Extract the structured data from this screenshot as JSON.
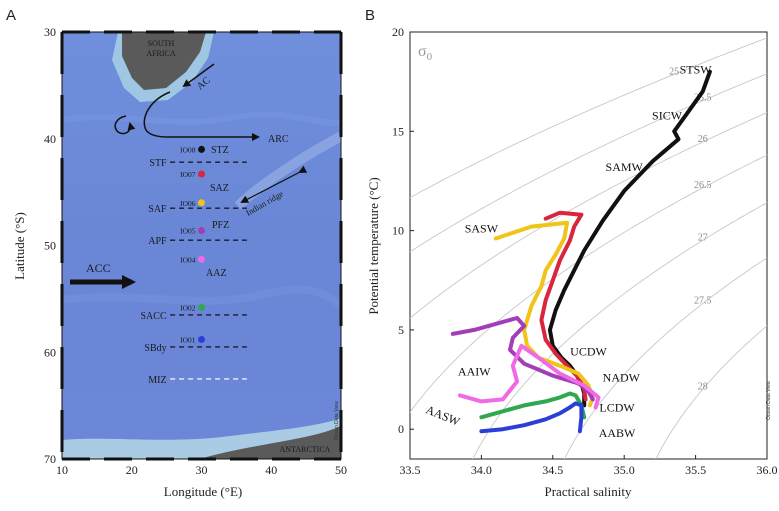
{
  "panels": {
    "a_label": "A",
    "b_label": "B"
  },
  "map": {
    "xlabel": "Longitude (°E)",
    "ylabel": "Latitude (°S)",
    "xticks": [
      10,
      20,
      30,
      40,
      50
    ],
    "yticks": [
      30,
      40,
      50,
      60,
      70
    ],
    "xlim": [
      10,
      50
    ],
    "ylim": [
      30,
      70
    ],
    "land_labels": {
      "south_africa_1": "SOUTH",
      "south_africa_2": "AFRICA",
      "antarctica": "ANTARCTICA"
    },
    "currents": {
      "ac": "AC",
      "arc": "ARC",
      "acc": "ACC"
    },
    "fronts": [
      {
        "label": "STF",
        "lat": 42.2
      },
      {
        "label": "SAF",
        "lat": 46.5
      },
      {
        "label": "APF",
        "lat": 49.5
      },
      {
        "label": "SACC",
        "lat": 56.5
      },
      {
        "label": "SBdy",
        "lat": 59.5
      },
      {
        "label": "MIZ",
        "lat": 62.5
      }
    ],
    "zones": {
      "stz": "STZ",
      "saz": "SAZ",
      "pfz": "PFZ",
      "aaz": "AAZ"
    },
    "ridge": "Indian ridge",
    "stations": [
      {
        "id": "IO08",
        "lon": 30,
        "lat": 41.0,
        "color": "#111111"
      },
      {
        "id": "IO07",
        "lon": 30,
        "lat": 43.3,
        "color": "#d7263d"
      },
      {
        "id": "IO06",
        "lon": 30,
        "lat": 46.0,
        "color": "#f0c419"
      },
      {
        "id": "IO05",
        "lon": 30,
        "lat": 48.6,
        "color": "#a23fb8"
      },
      {
        "id": "IO04",
        "lon": 30,
        "lat": 51.3,
        "color": "#f06ae8"
      },
      {
        "id": "IO02",
        "lon": 30,
        "lat": 55.8,
        "color": "#2fa84f"
      },
      {
        "id": "IO01",
        "lon": 30,
        "lat": 58.8,
        "color": "#2a3fd6"
      }
    ],
    "credit": "Ocean Data View"
  },
  "chart_data": {
    "type": "line",
    "title": "",
    "xlabel": "Practical salinity",
    "ylabel": "Potential temperature (°C)",
    "xlim": [
      33.5,
      36.0
    ],
    "ylim": [
      -1.5,
      20
    ],
    "xticks": [
      33.5,
      34.0,
      34.5,
      35.0,
      35.5,
      36.0
    ],
    "yticks": [
      0,
      5,
      10,
      15,
      20
    ],
    "density_symbol": "σ",
    "density_subscript": "0",
    "contours": [
      {
        "label": "25",
        "sigma": 25.0
      },
      {
        "label": "25.5",
        "sigma": 25.5
      },
      {
        "label": "26",
        "sigma": 26.0
      },
      {
        "label": "26.5",
        "sigma": 26.5
      },
      {
        "label": "27",
        "sigma": 27.0
      },
      {
        "label": "27.5",
        "sigma": 27.5
      },
      {
        "label": "28",
        "sigma": 28.0
      }
    ],
    "water_masses": [
      {
        "label": "STSW",
        "s": 35.5,
        "t": 17.9
      },
      {
        "label": "SICW",
        "s": 35.3,
        "t": 15.6
      },
      {
        "label": "SAMW",
        "s": 35.0,
        "t": 13.0
      },
      {
        "label": "SASW",
        "s": 34.0,
        "t": 9.9
      },
      {
        "label": "UCDW",
        "s": 34.75,
        "t": 3.7
      },
      {
        "label": "NADW",
        "s": 34.98,
        "t": 2.4
      },
      {
        "label": "AAIW",
        "s": 33.95,
        "t": 2.7
      },
      {
        "label": "LCDW",
        "s": 34.95,
        "t": 0.9
      },
      {
        "label": "AASW",
        "s": 33.72,
        "t": 0.5
      },
      {
        "label": "AABW",
        "s": 34.95,
        "t": -0.4
      }
    ],
    "series": [
      {
        "station": "IO08",
        "color": "#111111",
        "width": 4,
        "x": [
          35.6,
          35.55,
          35.45,
          35.35,
          35.38,
          35.2,
          35.0,
          34.85,
          34.72,
          34.65,
          34.58,
          34.52,
          34.48,
          34.5,
          34.56,
          34.62,
          34.66,
          34.7,
          34.72,
          34.72
        ],
        "y": [
          18.0,
          17.0,
          16.0,
          15.0,
          14.6,
          13.5,
          12.0,
          10.5,
          9.0,
          8.0,
          7.0,
          6.0,
          5.0,
          4.2,
          3.6,
          3.2,
          2.8,
          2.3,
          1.8,
          1.2
        ]
      },
      {
        "station": "IO07",
        "color": "#d7263d",
        "width": 4,
        "x": [
          34.45,
          34.55,
          34.7,
          34.65,
          34.62,
          34.55,
          34.5,
          34.45,
          34.42,
          34.45,
          34.52,
          34.6,
          34.68,
          34.72,
          34.73
        ],
        "y": [
          10.6,
          10.9,
          10.8,
          10.2,
          9.5,
          8.5,
          7.5,
          6.5,
          5.5,
          4.5,
          3.8,
          3.2,
          2.6,
          2.0,
          1.5
        ]
      },
      {
        "station": "IO06",
        "color": "#f0c419",
        "width": 4,
        "x": [
          34.1,
          34.35,
          34.6,
          34.58,
          34.52,
          34.45,
          34.42,
          34.35,
          34.3,
          34.32,
          34.4,
          34.55,
          34.68,
          34.75,
          34.78,
          34.76
        ],
        "y": [
          9.6,
          10.2,
          10.4,
          9.6,
          8.8,
          8.0,
          7.2,
          6.2,
          5.0,
          4.2,
          3.6,
          3.2,
          2.8,
          2.2,
          1.6,
          1.2
        ]
      },
      {
        "station": "IO05",
        "color": "#a23fb8",
        "width": 4,
        "x": [
          33.8,
          33.95,
          34.1,
          34.25,
          34.3,
          34.22,
          34.2,
          34.3,
          34.5,
          34.68,
          34.75,
          34.78
        ],
        "y": [
          4.8,
          5.0,
          5.3,
          5.6,
          5.2,
          4.6,
          4.0,
          3.3,
          2.7,
          2.3,
          1.9,
          1.5
        ]
      },
      {
        "station": "IO04",
        "color": "#f06ae8",
        "width": 4,
        "x": [
          33.85,
          34.0,
          34.15,
          34.25,
          34.22,
          34.28,
          34.4,
          34.55,
          34.72,
          34.82,
          34.8
        ],
        "y": [
          1.7,
          1.4,
          1.5,
          2.4,
          3.2,
          4.2,
          3.6,
          2.8,
          2.2,
          1.6,
          1.1
        ]
      },
      {
        "station": "IO02",
        "color": "#2fa84f",
        "width": 4,
        "x": [
          34.0,
          34.15,
          34.3,
          34.45,
          34.55,
          34.62,
          34.66,
          34.7,
          34.72
        ],
        "y": [
          0.6,
          0.9,
          1.2,
          1.4,
          1.6,
          1.8,
          1.7,
          1.2,
          0.6
        ]
      },
      {
        "station": "IO01",
        "color": "#2a3fd6",
        "width": 4,
        "x": [
          34.0,
          34.15,
          34.3,
          34.45,
          34.55,
          34.62,
          34.66,
          34.7,
          34.7,
          34.69
        ],
        "y": [
          -0.1,
          0.0,
          0.2,
          0.5,
          0.8,
          1.1,
          1.3,
          1.2,
          0.6,
          -0.1
        ]
      }
    ]
  }
}
